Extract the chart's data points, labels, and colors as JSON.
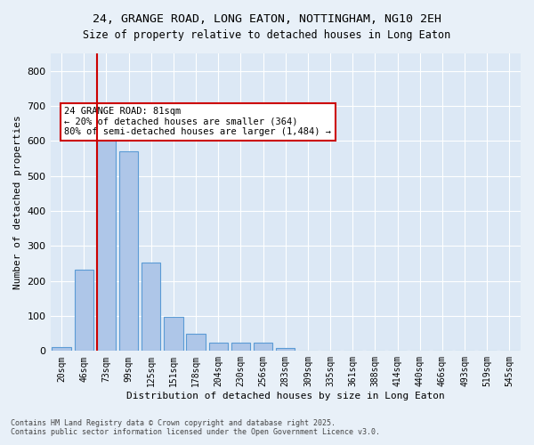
{
  "title_line1": "24, GRANGE ROAD, LONG EATON, NOTTINGHAM, NG10 2EH",
  "title_line2": "Size of property relative to detached houses in Long Eaton",
  "xlabel": "Distribution of detached houses by size in Long Eaton",
  "ylabel": "Number of detached properties",
  "categories": [
    "20sqm",
    "46sqm",
    "73sqm",
    "99sqm",
    "125sqm",
    "151sqm",
    "178sqm",
    "204sqm",
    "230sqm",
    "256sqm",
    "283sqm",
    "309sqm",
    "335sqm",
    "361sqm",
    "388sqm",
    "414sqm",
    "440sqm",
    "466sqm",
    "493sqm",
    "519sqm",
    "545sqm"
  ],
  "values": [
    10,
    233,
    620,
    570,
    253,
    97,
    50,
    23,
    23,
    23,
    8,
    2,
    0,
    0,
    0,
    0,
    0,
    0,
    0,
    0,
    0
  ],
  "bar_color": "#aec6e8",
  "bar_edge_color": "#5b9bd5",
  "vline_x": 2,
  "vline_color": "#cc0000",
  "annotation_text": "24 GRANGE ROAD: 81sqm\n← 20% of detached houses are smaller (364)\n80% of semi-detached houses are larger (1,484) →",
  "annotation_box_color": "#ffffff",
  "annotation_box_edge": "#cc0000",
  "bg_color": "#e8f0f8",
  "plot_bg_color": "#dce8f5",
  "grid_color": "#ffffff",
  "ylim": [
    0,
    850
  ],
  "yticks": [
    0,
    100,
    200,
    300,
    400,
    500,
    600,
    700,
    800
  ],
  "footer_line1": "Contains HM Land Registry data © Crown copyright and database right 2025.",
  "footer_line2": "Contains public sector information licensed under the Open Government Licence v3.0."
}
